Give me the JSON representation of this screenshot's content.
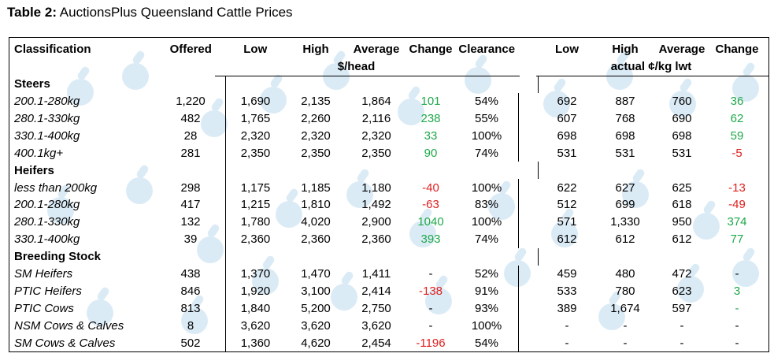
{
  "title": {
    "label": "Table 2:",
    "text": "AuctionsPlus Queensland Cattle Prices"
  },
  "headers": {
    "classification": "Classification",
    "offered": "Offered",
    "low": "Low",
    "high": "High",
    "average": "Average",
    "change": "Change",
    "clearance": "Clearance",
    "low2": "Low",
    "high2": "High",
    "average2": "Average",
    "change2": "Change",
    "unit_head": "$/head",
    "unit_kg": "actual ¢/kg lwt"
  },
  "colors": {
    "positive": "#1fa84a",
    "negative": "#e02020",
    "watermark": "#d5e8f5"
  },
  "groups": [
    {
      "name": "Steers",
      "rows": [
        {
          "cls": "200.1-280kg",
          "off": "1,220",
          "low": "1,690",
          "high": "2,135",
          "avg": "1,864",
          "chg": "101",
          "chg_sign": "pos",
          "clr": "54%",
          "low2": "692",
          "high2": "887",
          "avg2": "760",
          "chg2": "36",
          "chg2_sign": "pos"
        },
        {
          "cls": "280.1-330kg",
          "off": "482",
          "low": "1,765",
          "high": "2,260",
          "avg": "2,116",
          "chg": "238",
          "chg_sign": "pos",
          "clr": "55%",
          "low2": "607",
          "high2": "768",
          "avg2": "690",
          "chg2": "62",
          "chg2_sign": "pos"
        },
        {
          "cls": "330.1-400kg",
          "off": "28",
          "low": "2,320",
          "high": "2,320",
          "avg": "2,320",
          "chg": "33",
          "chg_sign": "pos",
          "clr": "100%",
          "low2": "698",
          "high2": "698",
          "avg2": "698",
          "chg2": "59",
          "chg2_sign": "pos"
        },
        {
          "cls": "400.1kg+",
          "off": "281",
          "low": "2,350",
          "high": "2,350",
          "avg": "2,350",
          "chg": "90",
          "chg_sign": "pos",
          "clr": "74%",
          "low2": "531",
          "high2": "531",
          "avg2": "531",
          "chg2": "-5",
          "chg2_sign": "neg"
        }
      ]
    },
    {
      "name": "Heifers",
      "rows": [
        {
          "cls": "less than 200kg",
          "off": "298",
          "low": "1,175",
          "high": "1,185",
          "avg": "1,180",
          "chg": "-40",
          "chg_sign": "neg",
          "clr": "100%",
          "low2": "622",
          "high2": "627",
          "avg2": "625",
          "chg2": "-13",
          "chg2_sign": "neg"
        },
        {
          "cls": "200.1-280kg",
          "off": "417",
          "low": "1,215",
          "high": "1,810",
          "avg": "1,492",
          "chg": "-63",
          "chg_sign": "neg",
          "clr": "83%",
          "low2": "512",
          "high2": "699",
          "avg2": "618",
          "chg2": "-49",
          "chg2_sign": "neg"
        },
        {
          "cls": "280.1-330kg",
          "off": "132",
          "low": "1,780",
          "high": "4,020",
          "avg": "2,900",
          "chg": "1040",
          "chg_sign": "pos",
          "clr": "100%",
          "low2": "571",
          "high2": "1,330",
          "avg2": "950",
          "chg2": "374",
          "chg2_sign": "pos"
        },
        {
          "cls": "330.1-400kg",
          "off": "39",
          "low": "2,360",
          "high": "2,360",
          "avg": "2,360",
          "chg": "393",
          "chg_sign": "pos",
          "clr": "74%",
          "low2": "612",
          "high2": "612",
          "avg2": "612",
          "chg2": "77",
          "chg2_sign": "pos"
        }
      ]
    },
    {
      "name": "Breeding Stock",
      "rows": [
        {
          "cls": "SM Heifers",
          "off": "438",
          "low": "1,370",
          "high": "1,470",
          "avg": "1,411",
          "chg": "-",
          "chg_sign": "",
          "clr": "52%",
          "low2": "459",
          "high2": "480",
          "avg2": "472",
          "chg2": "-",
          "chg2_sign": ""
        },
        {
          "cls": "PTIC Heifers",
          "off": "846",
          "low": "1,920",
          "high": "3,100",
          "avg": "2,414",
          "chg": "-138",
          "chg_sign": "neg",
          "clr": "91%",
          "low2": "533",
          "high2": "780",
          "avg2": "623",
          "chg2": "3",
          "chg2_sign": "pos"
        },
        {
          "cls": "PTIC Cows",
          "off": "813",
          "low": "1,840",
          "high": "5,200",
          "avg": "2,750",
          "chg": "-",
          "chg_sign": "",
          "clr": "93%",
          "low2": "389",
          "high2": "1,674",
          "avg2": "597",
          "chg2": "-",
          "chg2_sign": "pos"
        },
        {
          "cls": "NSM Cows & Calves",
          "off": "8",
          "low": "3,620",
          "high": "3,620",
          "avg": "3,620",
          "chg": "-",
          "chg_sign": "",
          "clr": "100%",
          "low2": "-",
          "high2": "-",
          "avg2": "-",
          "chg2": "-",
          "chg2_sign": ""
        },
        {
          "cls": "SM Cows & Calves",
          "off": "502",
          "low": "1,360",
          "high": "4,620",
          "avg": "2,454",
          "chg": "-1196",
          "chg_sign": "neg",
          "clr": "54%",
          "low2": "-",
          "high2": "-",
          "avg2": "-",
          "chg2": "-",
          "chg2_sign": ""
        }
      ]
    }
  ]
}
